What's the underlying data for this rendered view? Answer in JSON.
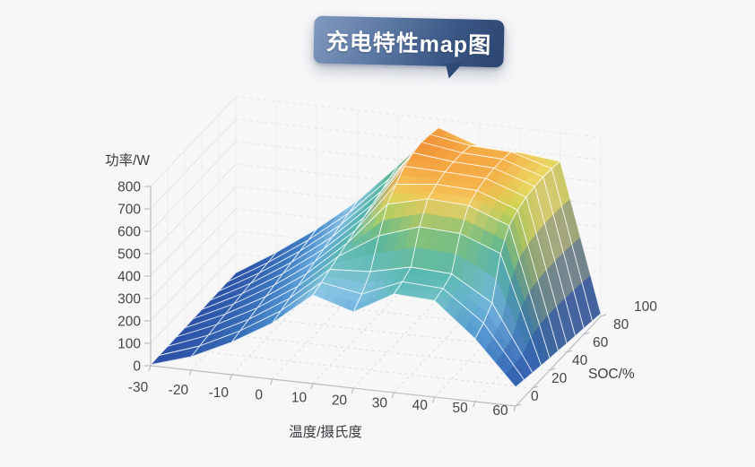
{
  "title": {
    "text": "充电特性map图"
  },
  "chart_data": {
    "type": "surface",
    "title": "充电特性map图",
    "xlabel": "温度/摄氏度",
    "ylabel": "SOC/%",
    "zlabel": "功率/W",
    "x": [
      -30,
      -20,
      -10,
      0,
      10,
      20,
      30,
      40,
      50,
      60
    ],
    "y": [
      0,
      10,
      20,
      30,
      40,
      50,
      60,
      70,
      80,
      90,
      100
    ],
    "z": [
      [
        5,
        6,
        7,
        8,
        9,
        10,
        11,
        12,
        13,
        14,
        15
      ],
      [
        60,
        68,
        76,
        84,
        90,
        96,
        102,
        108,
        114,
        120,
        126
      ],
      [
        145,
        156,
        167,
        178,
        189,
        200,
        211,
        221,
        231,
        241,
        251
      ],
      [
        250,
        265,
        280,
        295,
        310,
        325,
        340,
        354,
        368,
        382,
        396
      ],
      [
        395,
        412,
        430,
        448,
        466,
        484,
        502,
        520,
        538,
        556,
        574
      ],
      [
        340,
        380,
        440,
        560,
        660,
        710,
        750,
        770,
        778,
        772,
        762
      ],
      [
        440,
        455,
        480,
        620,
        705,
        730,
        745,
        750,
        750,
        742,
        700
      ],
      [
        430,
        445,
        470,
        610,
        695,
        722,
        736,
        742,
        742,
        734,
        692
      ],
      [
        280,
        310,
        360,
        540,
        625,
        655,
        672,
        680,
        682,
        680,
        672
      ],
      [
        85,
        77,
        69,
        61,
        53,
        46,
        39,
        32,
        26,
        19,
        12
      ]
    ],
    "zlim": [
      0,
      800
    ],
    "x_ticks": [
      -30,
      -20,
      -10,
      0,
      10,
      20,
      30,
      40,
      50,
      60
    ],
    "y_ticks": [
      0,
      20,
      40,
      60,
      80,
      100
    ],
    "z_ticks": [
      0,
      100,
      200,
      300,
      400,
      500,
      600,
      700,
      800
    ],
    "grid": true,
    "legend": "none",
    "colormap": [
      [
        0,
        "#2b4fa5"
      ],
      [
        130,
        "#3465b2"
      ],
      [
        240,
        "#4183c8"
      ],
      [
        330,
        "#66abdd"
      ],
      [
        400,
        "#93cae8"
      ],
      [
        455,
        "#5cbab3"
      ],
      [
        525,
        "#4db3a3"
      ],
      [
        585,
        "#58b48d"
      ],
      [
        625,
        "#9cc767"
      ],
      [
        658,
        "#cdd64f"
      ],
      [
        682,
        "#ecda66"
      ],
      [
        702,
        "#f5cd62"
      ],
      [
        722,
        "#f6b94f"
      ],
      [
        748,
        "#f5a843"
      ],
      [
        778,
        "#f09038"
      ],
      [
        800,
        "#ec8431"
      ]
    ]
  },
  "colors": {
    "background": "#f7f7f8",
    "bubble_light": "#8299bd",
    "bubble_dark": "#2b4571",
    "axis_line": "#bcbcc3",
    "grid_line": "#dcdce1",
    "wall_line": "#e4e4e9",
    "tick_text": "#45454a",
    "mesh_line": "#ffffff"
  }
}
